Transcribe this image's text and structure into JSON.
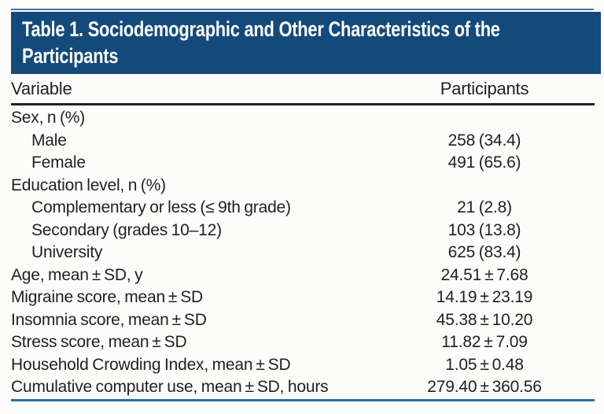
{
  "title": {
    "full": "Table 1. Sociodemographic and Other Characteristics of the Participants",
    "lines": [
      "Table 1. Sociodemographic and Other Characteristics of the",
      "Participants"
    ]
  },
  "columns": {
    "variable": "Variable",
    "participants": "Participants"
  },
  "rows": [
    {
      "label": "Sex, n (%)",
      "value": "",
      "indent": false
    },
    {
      "label": "Male",
      "value": "258 (34.4)",
      "indent": true
    },
    {
      "label": "Female",
      "value": "491 (65.6)",
      "indent": true
    },
    {
      "label": "Education level, n (%)",
      "value": "",
      "indent": false
    },
    {
      "label": "Complementary or less (≤ 9th grade)",
      "value": "21 (2.8)",
      "indent": true
    },
    {
      "label": "Secondary (grades 10–12)",
      "value": "103 (13.8)",
      "indent": true
    },
    {
      "label": "University",
      "value": "625 (83.4)",
      "indent": true
    },
    {
      "label": "Age, mean ± SD, y",
      "value": "24.51 ± 7.68",
      "indent": false
    },
    {
      "label": "Migraine score, mean ± SD",
      "value": "14.19 ± 23.19",
      "indent": false
    },
    {
      "label": "Insomnia score, mean ± SD",
      "value": "45.38 ± 10.20",
      "indent": false
    },
    {
      "label": "Stress score, mean ± SD",
      "value": "11.82 ± 7.09",
      "indent": false
    },
    {
      "label": "Household Crowding Index, mean ± SD",
      "value": "1.05 ± 0.48",
      "indent": false
    },
    {
      "label": "Cumulative computer use, mean ± SD, hours",
      "value": "279.40 ± 360.56",
      "indent": false
    }
  ],
  "colors": {
    "page_bg": "#fcfcfa",
    "banner_bg": "#14497b",
    "title_text": "#ffffff",
    "top_rule": "#41719c",
    "header_rule": "#231f20",
    "bottom_rule": "#2173a8",
    "body_text": "#231f20"
  }
}
